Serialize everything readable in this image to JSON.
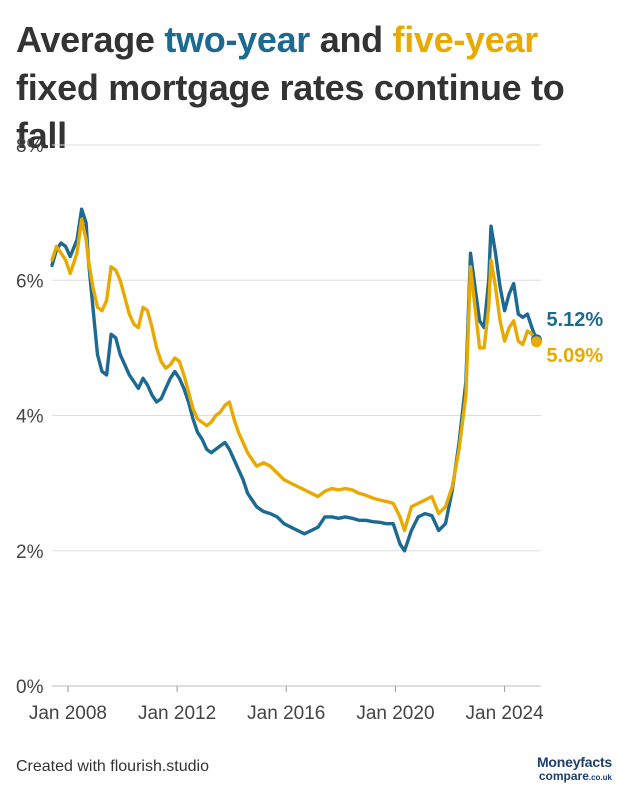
{
  "title": {
    "part1": "Average ",
    "two_year": "two-year",
    "part2": " and ",
    "five_year": "five-year",
    "part3": " fixed mortgage rates continue to fall"
  },
  "footer": {
    "credit": "Created with flourish.studio"
  },
  "logo": {
    "line1": "Moneyfacts",
    "line2": "compare",
    "suffix": ".co.uk"
  },
  "colors": {
    "two_year": "#1c6a92",
    "five_year": "#e8a900",
    "grid": "#dddddd",
    "text": "#333333"
  },
  "chart_data": {
    "type": "line",
    "title": "Average two-year and five-year fixed mortgage rates continue to fall",
    "xlabel": "",
    "ylabel": "",
    "ylim": [
      0,
      8
    ],
    "y_ticks": [
      "0%",
      "2%",
      "4%",
      "6%",
      "8%"
    ],
    "x_ticks": [
      "Jan 2008",
      "Jan 2012",
      "Jan 2016",
      "Jan 2020",
      "Jan 2024"
    ],
    "grid": true,
    "legend": "none",
    "series": [
      {
        "name": "two-year",
        "color": "#1c6a92",
        "end_label": "5.12%",
        "points": [
          [
            "2007-06",
            6.22
          ],
          [
            "2007-08",
            6.45
          ],
          [
            "2007-10",
            6.55
          ],
          [
            "2007-12",
            6.5
          ],
          [
            "2008-02",
            6.35
          ],
          [
            "2008-05",
            6.6
          ],
          [
            "2008-07",
            7.05
          ],
          [
            "2008-09",
            6.85
          ],
          [
            "2008-10",
            6.3
          ],
          [
            "2008-12",
            5.6
          ],
          [
            "2009-02",
            4.9
          ],
          [
            "2009-04",
            4.65
          ],
          [
            "2009-06",
            4.6
          ],
          [
            "2009-08",
            5.2
          ],
          [
            "2009-10",
            5.15
          ],
          [
            "2009-12",
            4.9
          ],
          [
            "2010-02",
            4.75
          ],
          [
            "2010-04",
            4.6
          ],
          [
            "2010-06",
            4.5
          ],
          [
            "2010-08",
            4.4
          ],
          [
            "2010-10",
            4.55
          ],
          [
            "2010-12",
            4.45
          ],
          [
            "2011-02",
            4.3
          ],
          [
            "2011-04",
            4.2
          ],
          [
            "2011-06",
            4.25
          ],
          [
            "2011-08",
            4.4
          ],
          [
            "2011-10",
            4.55
          ],
          [
            "2011-12",
            4.65
          ],
          [
            "2012-02",
            4.55
          ],
          [
            "2012-04",
            4.4
          ],
          [
            "2012-06",
            4.2
          ],
          [
            "2012-08",
            3.95
          ],
          [
            "2012-10",
            3.75
          ],
          [
            "2012-12",
            3.65
          ],
          [
            "2013-02",
            3.5
          ],
          [
            "2013-04",
            3.45
          ],
          [
            "2013-06",
            3.5
          ],
          [
            "2013-08",
            3.55
          ],
          [
            "2013-10",
            3.6
          ],
          [
            "2013-12",
            3.5
          ],
          [
            "2014-02",
            3.35
          ],
          [
            "2014-04",
            3.2
          ],
          [
            "2014-06",
            3.05
          ],
          [
            "2014-08",
            2.85
          ],
          [
            "2014-10",
            2.75
          ],
          [
            "2014-12",
            2.65
          ],
          [
            "2015-03",
            2.58
          ],
          [
            "2015-06",
            2.55
          ],
          [
            "2015-09",
            2.5
          ],
          [
            "2015-12",
            2.4
          ],
          [
            "2016-03",
            2.35
          ],
          [
            "2016-06",
            2.3
          ],
          [
            "2016-09",
            2.25
          ],
          [
            "2016-12",
            2.3
          ],
          [
            "2017-03",
            2.35
          ],
          [
            "2017-06",
            2.5
          ],
          [
            "2017-09",
            2.5
          ],
          [
            "2017-12",
            2.48
          ],
          [
            "2018-03",
            2.5
          ],
          [
            "2018-06",
            2.48
          ],
          [
            "2018-09",
            2.45
          ],
          [
            "2018-12",
            2.45
          ],
          [
            "2019-03",
            2.43
          ],
          [
            "2019-06",
            2.42
          ],
          [
            "2019-09",
            2.4
          ],
          [
            "2019-12",
            2.4
          ],
          [
            "2020-03",
            2.1
          ],
          [
            "2020-05",
            2.0
          ],
          [
            "2020-08",
            2.3
          ],
          [
            "2020-11",
            2.5
          ],
          [
            "2021-02",
            2.55
          ],
          [
            "2021-05",
            2.52
          ],
          [
            "2021-08",
            2.3
          ],
          [
            "2021-11",
            2.4
          ],
          [
            "2022-02",
            2.9
          ],
          [
            "2022-05",
            3.6
          ],
          [
            "2022-08",
            4.5
          ],
          [
            "2022-10",
            6.4
          ],
          [
            "2022-12",
            5.9
          ],
          [
            "2023-02",
            5.4
          ],
          [
            "2023-04",
            5.3
          ],
          [
            "2023-06",
            6.0
          ],
          [
            "2023-07",
            6.8
          ],
          [
            "2023-09",
            6.4
          ],
          [
            "2023-11",
            5.9
          ],
          [
            "2024-01",
            5.55
          ],
          [
            "2024-03",
            5.8
          ],
          [
            "2024-05",
            5.95
          ],
          [
            "2024-07",
            5.5
          ],
          [
            "2024-09",
            5.45
          ],
          [
            "2024-11",
            5.5
          ],
          [
            "2025-01",
            5.3
          ],
          [
            "2025-03",
            5.12
          ]
        ]
      },
      {
        "name": "five-year",
        "color": "#e8a900",
        "end_label": "5.09%",
        "points": [
          [
            "2007-06",
            6.3
          ],
          [
            "2007-08",
            6.5
          ],
          [
            "2007-10",
            6.4
          ],
          [
            "2007-12",
            6.3
          ],
          [
            "2008-02",
            6.1
          ],
          [
            "2008-05",
            6.4
          ],
          [
            "2008-07",
            6.9
          ],
          [
            "2008-09",
            6.6
          ],
          [
            "2008-10",
            6.3
          ],
          [
            "2008-12",
            5.9
          ],
          [
            "2009-02",
            5.6
          ],
          [
            "2009-04",
            5.55
          ],
          [
            "2009-06",
            5.7
          ],
          [
            "2009-08",
            6.2
          ],
          [
            "2009-10",
            6.15
          ],
          [
            "2009-12",
            6.0
          ],
          [
            "2010-02",
            5.75
          ],
          [
            "2010-04",
            5.5
          ],
          [
            "2010-06",
            5.35
          ],
          [
            "2010-08",
            5.3
          ],
          [
            "2010-10",
            5.6
          ],
          [
            "2010-12",
            5.55
          ],
          [
            "2011-02",
            5.3
          ],
          [
            "2011-04",
            5.0
          ],
          [
            "2011-06",
            4.8
          ],
          [
            "2011-08",
            4.7
          ],
          [
            "2011-10",
            4.75
          ],
          [
            "2011-12",
            4.85
          ],
          [
            "2012-02",
            4.8
          ],
          [
            "2012-04",
            4.6
          ],
          [
            "2012-06",
            4.35
          ],
          [
            "2012-08",
            4.1
          ],
          [
            "2012-10",
            3.95
          ],
          [
            "2012-12",
            3.9
          ],
          [
            "2013-02",
            3.85
          ],
          [
            "2013-04",
            3.9
          ],
          [
            "2013-06",
            4.0
          ],
          [
            "2013-08",
            4.05
          ],
          [
            "2013-10",
            4.15
          ],
          [
            "2013-12",
            4.2
          ],
          [
            "2014-02",
            3.95
          ],
          [
            "2014-04",
            3.75
          ],
          [
            "2014-06",
            3.6
          ],
          [
            "2014-08",
            3.45
          ],
          [
            "2014-10",
            3.35
          ],
          [
            "2014-12",
            3.25
          ],
          [
            "2015-03",
            3.3
          ],
          [
            "2015-06",
            3.25
          ],
          [
            "2015-09",
            3.15
          ],
          [
            "2015-12",
            3.05
          ],
          [
            "2016-03",
            3.0
          ],
          [
            "2016-06",
            2.95
          ],
          [
            "2016-09",
            2.9
          ],
          [
            "2016-12",
            2.85
          ],
          [
            "2017-03",
            2.8
          ],
          [
            "2017-06",
            2.88
          ],
          [
            "2017-09",
            2.92
          ],
          [
            "2017-12",
            2.9
          ],
          [
            "2018-03",
            2.92
          ],
          [
            "2018-06",
            2.9
          ],
          [
            "2018-09",
            2.85
          ],
          [
            "2018-12",
            2.82
          ],
          [
            "2019-03",
            2.78
          ],
          [
            "2019-06",
            2.75
          ],
          [
            "2019-09",
            2.73
          ],
          [
            "2019-12",
            2.7
          ],
          [
            "2020-03",
            2.5
          ],
          [
            "2020-05",
            2.3
          ],
          [
            "2020-08",
            2.65
          ],
          [
            "2020-11",
            2.7
          ],
          [
            "2021-02",
            2.75
          ],
          [
            "2021-05",
            2.8
          ],
          [
            "2021-08",
            2.55
          ],
          [
            "2021-11",
            2.65
          ],
          [
            "2022-02",
            2.95
          ],
          [
            "2022-05",
            3.5
          ],
          [
            "2022-08",
            4.3
          ],
          [
            "2022-10",
            6.2
          ],
          [
            "2022-12",
            5.6
          ],
          [
            "2023-02",
            5.0
          ],
          [
            "2023-04",
            5.0
          ],
          [
            "2023-06",
            5.6
          ],
          [
            "2023-07",
            6.3
          ],
          [
            "2023-09",
            5.9
          ],
          [
            "2023-11",
            5.4
          ],
          [
            "2024-01",
            5.1
          ],
          [
            "2024-03",
            5.3
          ],
          [
            "2024-05",
            5.4
          ],
          [
            "2024-07",
            5.1
          ],
          [
            "2024-09",
            5.05
          ],
          [
            "2024-11",
            5.25
          ],
          [
            "2025-01",
            5.2
          ],
          [
            "2025-03",
            5.09
          ]
        ]
      }
    ]
  }
}
